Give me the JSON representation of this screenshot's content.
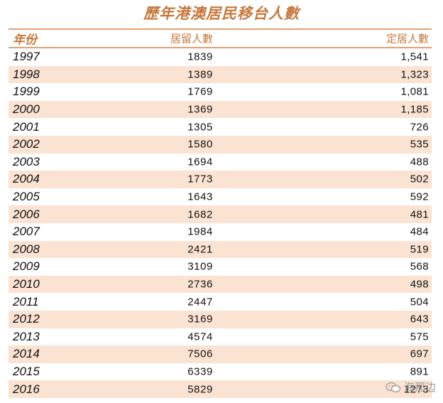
{
  "title": "歷年港澳居民移台人數",
  "columns": {
    "year": "年份",
    "residence": "居留人數",
    "settlement": "定居人數"
  },
  "rows": [
    {
      "year": "1997",
      "residence": "1839",
      "settlement": "1,541"
    },
    {
      "year": "1998",
      "residence": "1389",
      "settlement": "1,323"
    },
    {
      "year": "1999",
      "residence": "1769",
      "settlement": "1,081"
    },
    {
      "year": "2000",
      "residence": "1369",
      "settlement": "1,185"
    },
    {
      "year": "2001",
      "residence": "1305",
      "settlement": "726"
    },
    {
      "year": "2002",
      "residence": "1580",
      "settlement": "535"
    },
    {
      "year": "2003",
      "residence": "1694",
      "settlement": "488"
    },
    {
      "year": "2004",
      "residence": "1773",
      "settlement": "502"
    },
    {
      "year": "2005",
      "residence": "1643",
      "settlement": "592"
    },
    {
      "year": "2006",
      "residence": "1682",
      "settlement": "481"
    },
    {
      "year": "2007",
      "residence": "1984",
      "settlement": "484"
    },
    {
      "year": "2008",
      "residence": "2421",
      "settlement": "519"
    },
    {
      "year": "2009",
      "residence": "3109",
      "settlement": "568"
    },
    {
      "year": "2010",
      "residence": "2736",
      "settlement": "498"
    },
    {
      "year": "2011",
      "residence": "2447",
      "settlement": "504"
    },
    {
      "year": "2012",
      "residence": "3169",
      "settlement": "643"
    },
    {
      "year": "2013",
      "residence": "4574",
      "settlement": "575"
    },
    {
      "year": "2014",
      "residence": "7506",
      "settlement": "697"
    },
    {
      "year": "2015",
      "residence": "6339",
      "settlement": "891"
    },
    {
      "year": "2016",
      "residence": "5829",
      "settlement": "1273"
    }
  ],
  "watermark": {
    "text": "海那边",
    "icon": "wechat-icon"
  },
  "colors": {
    "accent": "#c7773c",
    "row_alt": "#fbe3d3",
    "rule": "#e3a06f"
  }
}
